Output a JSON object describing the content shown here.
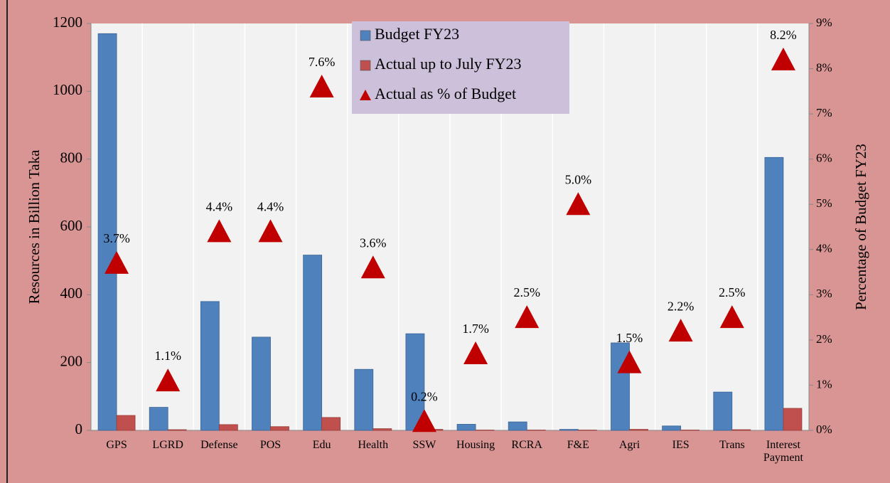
{
  "chart_data": {
    "type": "bar",
    "categories": [
      "GPS",
      "LGRD",
      "Defense",
      "POS",
      "Edu",
      "Health",
      "SSW",
      "Housing",
      "RCRA",
      "F&E",
      "Agri",
      "IES",
      "Trans",
      "Interest Payment"
    ],
    "series": [
      {
        "name": "Budget FY23",
        "color": "#4f81bd",
        "values": [
          1170,
          68,
          380,
          275,
          517,
          180,
          285,
          18,
          25,
          3,
          258,
          13,
          113,
          805
        ]
      },
      {
        "name": "Actual up to July FY23",
        "color": "#c0504d",
        "values": [
          44,
          2,
          17,
          11,
          38,
          5,
          3,
          1,
          1,
          1,
          3,
          1,
          2,
          65
        ]
      },
      {
        "name": "Actual as % of Budget",
        "color": "#c00000",
        "type": "scatter",
        "marker": "triangle",
        "axis": "y2",
        "values": [
          3.7,
          1.1,
          4.4,
          4.4,
          7.6,
          3.6,
          0.2,
          1.7,
          2.5,
          5,
          1.5,
          2.2,
          2.5,
          8.2
        ],
        "value_labels": [
          "3.7%",
          "1.1%",
          "4.4%",
          "4.4%",
          "7.6%",
          "3.6%",
          "0.2%",
          "1.7%",
          "2.5%",
          "5.0%",
          "1.5%",
          "2.2%",
          "2.5%",
          "8.2%"
        ]
      }
    ],
    "ylabel": "Resources in Billion Taka",
    "y2label": "Percentage  of  Budget  FY23",
    "ylim": [
      0,
      1200
    ],
    "yticks": [
      0,
      200,
      400,
      600,
      800,
      1000,
      1200
    ],
    "y2lim": [
      0,
      9
    ],
    "y2ticks": [
      {
        "value": 0,
        "label": "0%"
      },
      {
        "value": 1,
        "label": "1%"
      },
      {
        "value": 2,
        "label": "2%"
      },
      {
        "value": 3,
        "label": "3%"
      },
      {
        "value": 4,
        "label": "4%"
      },
      {
        "value": 5,
        "label": "5%"
      },
      {
        "value": 6,
        "label": "6%"
      },
      {
        "value": 7,
        "label": "7%"
      },
      {
        "value": 8,
        "label": "8%"
      },
      {
        "value": 9,
        "label": "9%"
      }
    ],
    "legend": "top"
  }
}
